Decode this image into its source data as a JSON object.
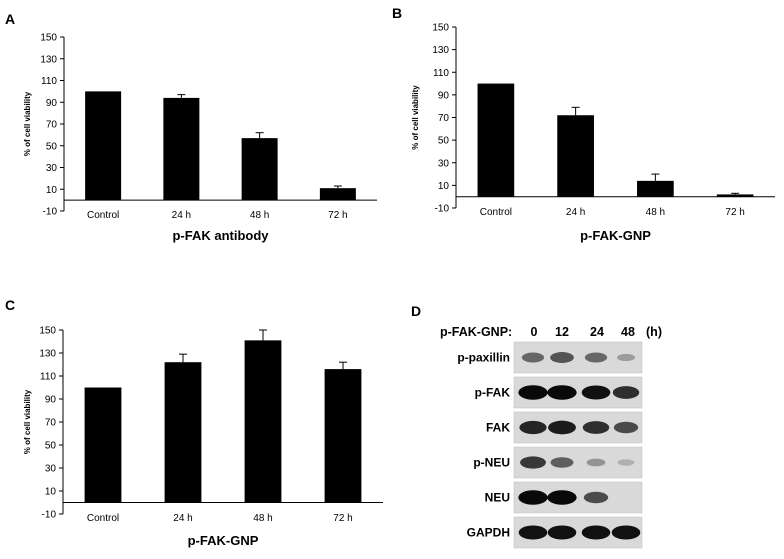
{
  "chart_data": [
    {
      "panel": "A",
      "type": "bar",
      "categories": [
        "Control",
        "24 h",
        "48 h",
        "72 h"
      ],
      "values": [
        100,
        94,
        57,
        11
      ],
      "errors": [
        0,
        3,
        5,
        2
      ],
      "title": "",
      "xlabel": "p-FAK antibody",
      "ylabel": "% of cell viability",
      "ylim": [
        -10,
        150
      ],
      "yticks": [
        -10,
        10,
        30,
        50,
        70,
        90,
        110,
        130,
        150
      ],
      "grid": false,
      "bar_color": "#000000"
    },
    {
      "panel": "B",
      "type": "bar",
      "categories": [
        "Control",
        "24 h",
        "48 h",
        "72 h"
      ],
      "values": [
        100,
        72,
        14,
        2
      ],
      "errors": [
        0,
        7,
        6,
        1
      ],
      "title": "",
      "xlabel": "p-FAK-GNP",
      "ylabel": "% of cell viability",
      "ylim": [
        -10,
        150
      ],
      "yticks": [
        -10,
        10,
        30,
        50,
        70,
        90,
        110,
        130,
        150
      ],
      "grid": false,
      "bar_color": "#000000"
    },
    {
      "panel": "C",
      "type": "bar",
      "categories": [
        "Control",
        "24 h",
        "48 h",
        "72 h"
      ],
      "values": [
        100,
        122,
        141,
        116
      ],
      "errors": [
        0,
        7,
        9,
        6
      ],
      "title": "",
      "xlabel": "p-FAK-GNP",
      "ylabel": "% of cell viability",
      "ylim": [
        -10,
        150
      ],
      "yticks": [
        -10,
        10,
        30,
        50,
        70,
        90,
        110,
        130,
        150
      ],
      "grid": false,
      "bar_color": "#000000"
    }
  ],
  "blot": {
    "panel": "D",
    "header_label": "p-FAK-GNP:",
    "timepoints": [
      "0",
      "12",
      "24",
      "48"
    ],
    "unit": "(h)",
    "rows": [
      {
        "label": "p-paxillin",
        "intensity": [
          0.45,
          0.55,
          0.45,
          0.15
        ]
      },
      {
        "label": "p-FAK",
        "intensity": [
          0.95,
          0.95,
          0.9,
          0.75
        ]
      },
      {
        "label": "FAK",
        "intensity": [
          0.8,
          0.85,
          0.75,
          0.6
        ]
      },
      {
        "label": "p-NEU",
        "intensity": [
          0.7,
          0.5,
          0.2,
          0.05
        ]
      },
      {
        "label": "NEU",
        "intensity": [
          0.95,
          0.95,
          0.6,
          0.0
        ]
      },
      {
        "label": "GAPDH",
        "intensity": [
          0.9,
          0.9,
          0.9,
          0.9
        ]
      }
    ]
  }
}
